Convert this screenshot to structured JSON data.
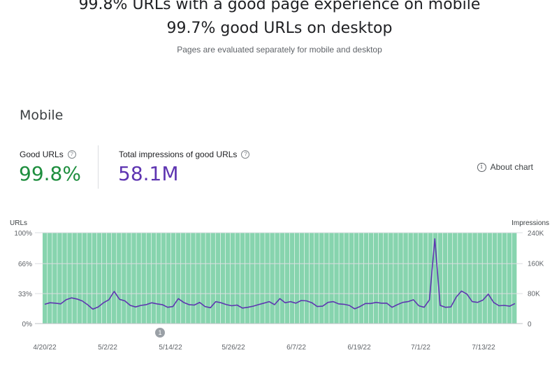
{
  "header": {
    "mobile_summary": "99.8% URLs with a good page experience on mobile",
    "desktop_summary": "99.7% good URLs on desktop",
    "note": "Pages are evaluated separately for mobile and desktop"
  },
  "section": {
    "title": "Mobile",
    "good_urls_label": "Good URLs",
    "good_urls_value": "99.8%",
    "impressions_label": "Total impressions of good URLs",
    "impressions_value": "58.1M",
    "about_chart": "About chart"
  },
  "colors": {
    "good": "#1e8e3e",
    "impressions": "#5e35b1",
    "bar": "#87d4ae"
  },
  "chart_data": {
    "type": "bar",
    "left_axis_title": "URLs",
    "right_axis_title": "Impressions",
    "left_ticks": [
      "100%",
      "66%",
      "33%",
      "0%"
    ],
    "right_ticks": [
      "240K",
      "160K",
      "80K",
      "0"
    ],
    "x_tick_labels": [
      "4/20/22",
      "5/2/22",
      "5/14/22",
      "5/26/22",
      "6/7/22",
      "6/19/22",
      "7/1/22",
      "7/13/22"
    ],
    "ylim_left": [
      0,
      100
    ],
    "ylim_right": [
      0,
      240000
    ],
    "annotation_marker": "1",
    "annotation_date": "5/14/22",
    "series": [
      {
        "kind": "bar",
        "axis": "left",
        "description": "Good URLs %",
        "values": [
          99.7,
          99.8,
          99.8,
          99.8,
          99.8,
          99.8,
          99.8,
          99.8,
          99.8,
          99.8,
          99.8,
          99.8,
          99.8,
          99.8,
          99.8,
          99.8,
          99.8,
          99.8,
          99.8,
          99.8,
          99.8,
          99.8,
          99.8,
          99.8,
          99.8,
          99.8,
          99.8,
          99.8,
          99.8,
          99.8,
          99.8,
          99.8,
          99.8,
          99.8,
          99.8,
          99.8,
          99.8,
          99.8,
          99.8,
          99.8,
          99.8,
          99.8,
          99.8,
          99.8,
          99.8,
          99.8,
          99.8,
          99.8,
          99.8,
          99.8,
          99.8,
          99.8,
          99.8,
          99.8,
          99.8,
          99.8,
          99.8,
          99.8,
          99.8,
          99.8,
          99.8,
          99.8,
          99.8,
          99.8,
          99.8,
          99.8,
          99.8,
          99.8,
          99.8,
          99.8,
          99.8,
          99.8,
          99.8,
          99.8,
          99.8,
          99.8,
          99.8,
          99.8,
          99.8,
          99.8,
          99.8,
          99.8,
          99.8,
          99.8,
          99.8,
          99.8,
          99.8,
          99.8,
          99.8,
          99.8,
          99.8,
          99.8,
          99.8,
          99.8,
          99.8,
          99.6
        ]
      },
      {
        "kind": "line",
        "axis": "right",
        "description": "Impressions",
        "values": [
          51000,
          55000,
          54000,
          52000,
          63000,
          68000,
          65000,
          60000,
          50000,
          38000,
          44000,
          55000,
          63000,
          85000,
          64000,
          60000,
          48000,
          44000,
          48000,
          50000,
          55000,
          52000,
          50000,
          43000,
          45000,
          66000,
          56000,
          50000,
          49000,
          56000,
          45000,
          42000,
          58000,
          55000,
          50000,
          47000,
          49000,
          41000,
          43000,
          46000,
          50000,
          54000,
          58000,
          50000,
          66000,
          55000,
          58000,
          54000,
          61000,
          60000,
          55000,
          45000,
          46000,
          56000,
          58000,
          52000,
          51000,
          48000,
          39000,
          45000,
          53000,
          53000,
          56000,
          54000,
          54000,
          43000,
          50000,
          56000,
          58000,
          63000,
          47000,
          43000,
          63000,
          224000,
          48000,
          43000,
          44000,
          70000,
          86000,
          78000,
          58000,
          56000,
          62000,
          78000,
          56000,
          47000,
          48000,
          46000,
          53000
        ]
      }
    ]
  }
}
